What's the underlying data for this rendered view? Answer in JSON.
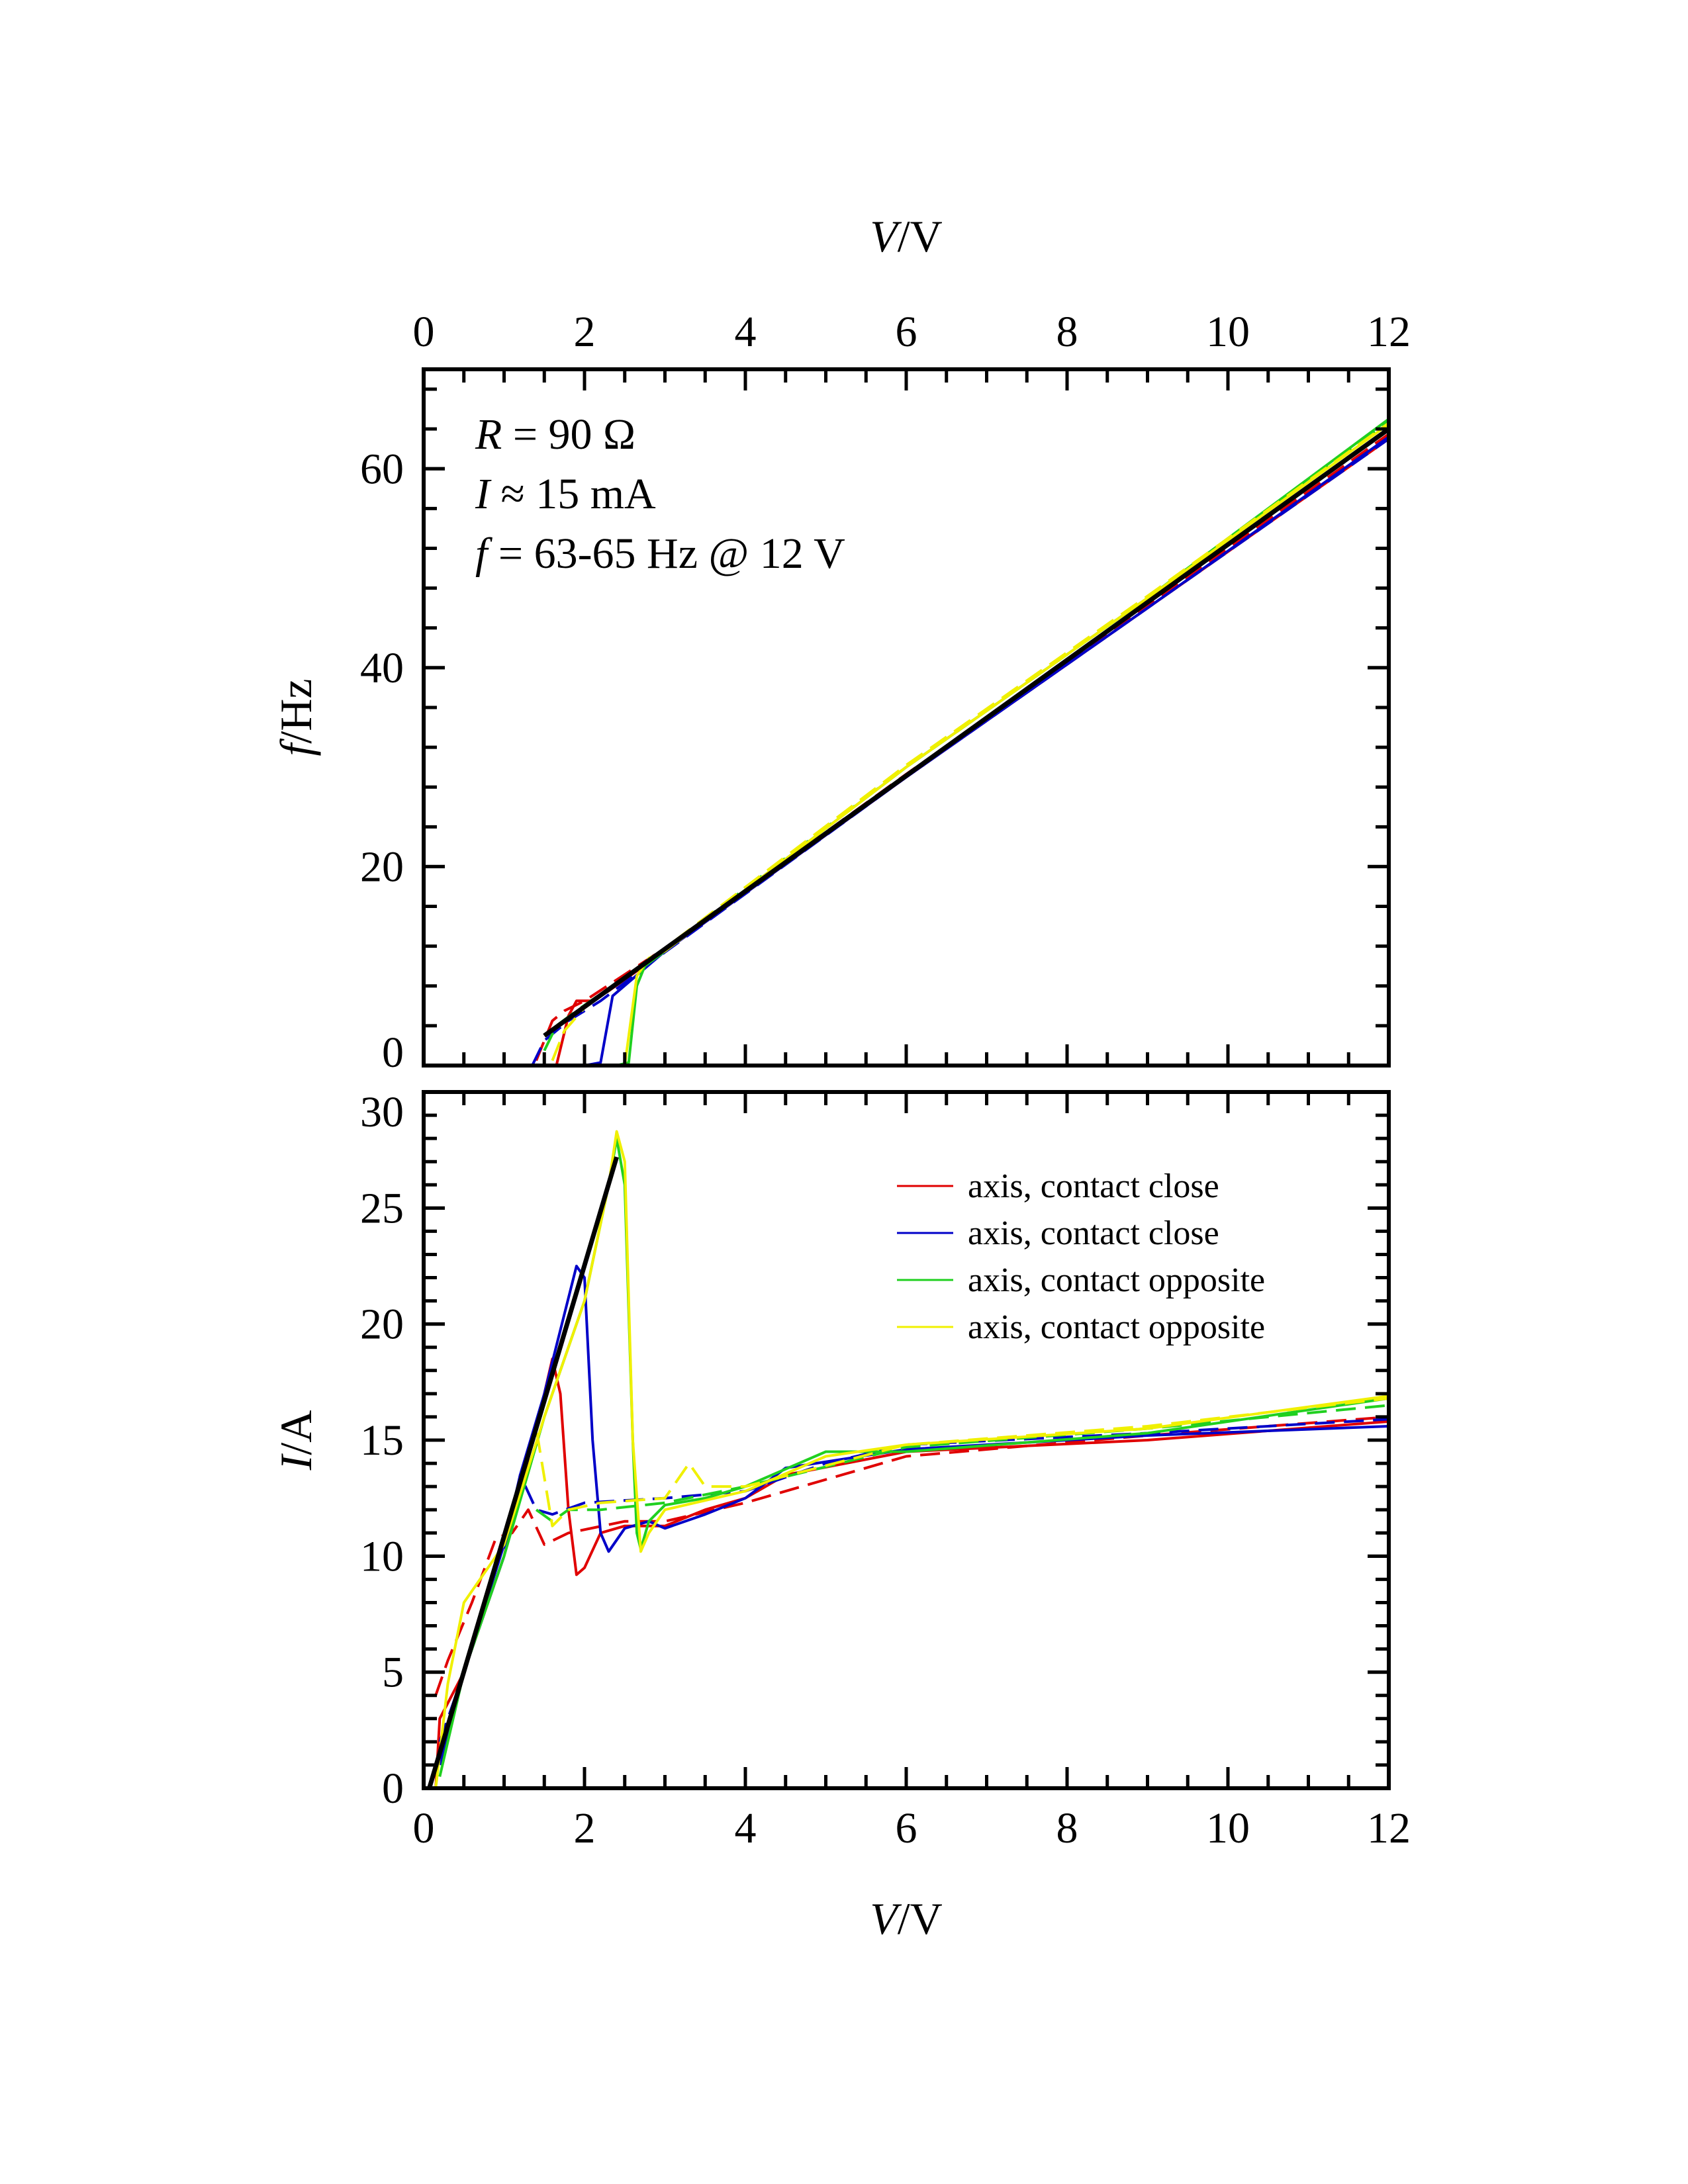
{
  "chart_data": [
    {
      "type": "line",
      "panel": "top",
      "xlabel_var": "V",
      "xlabel_unit": "/V",
      "ylabel_var": "f",
      "ylabel_unit": "/Hz",
      "xlim": [
        0,
        12
      ],
      "ylim": [
        0,
        70
      ],
      "xticks": [
        "0",
        "2",
        "4",
        "6",
        "8",
        "10",
        "12"
      ],
      "yticks": [
        "0",
        "20",
        "40",
        "60"
      ],
      "ytick_values": [
        0,
        20,
        40,
        60
      ],
      "annotations": [
        {
          "var": "R",
          "text": " = 90 Ω"
        },
        {
          "var": "I",
          "text": " ≈ 15 mA"
        },
        {
          "var": "f",
          "text": " = 63-65 Hz @ 12 V"
        }
      ],
      "fit_line": [
        [
          1.5,
          3.0
        ],
        [
          12,
          64
        ]
      ],
      "series": [
        {
          "name": "axis, contact close",
          "color": "#e00000",
          "style": "solid",
          "points": [
            [
              0,
              0
            ],
            [
              1.65,
              0
            ],
            [
              1.8,
              5
            ],
            [
              1.9,
              6.5
            ],
            [
              2.1,
              6.5
            ],
            [
              2.3,
              7.5
            ],
            [
              3,
              11.5
            ],
            [
              6,
              29
            ],
            [
              9,
              46
            ],
            [
              12,
              63
            ]
          ]
        },
        {
          "name": "axis, contact close",
          "color": "#e00000",
          "style": "dashed",
          "points": [
            [
              1.4,
              0.5
            ],
            [
              1.6,
              4.5
            ],
            [
              1.75,
              5.5
            ],
            [
              2,
              6.5
            ],
            [
              3,
              11.8
            ],
            [
              6,
              29.3
            ],
            [
              9,
              46.2
            ],
            [
              12,
              63.5
            ]
          ]
        },
        {
          "name": "axis, contact close",
          "color": "#0000c8",
          "style": "solid",
          "points": [
            [
              0,
              0
            ],
            [
              2.0,
              0
            ],
            [
              2.2,
              0.3
            ],
            [
              2.35,
              7
            ],
            [
              3,
              11.5
            ],
            [
              6,
              29
            ],
            [
              9,
              46
            ],
            [
              12,
              63.2
            ]
          ]
        },
        {
          "name": "axis, contact close",
          "color": "#0000c8",
          "style": "dashed",
          "points": [
            [
              1.35,
              0
            ],
            [
              1.5,
              2.5
            ],
            [
              1.8,
              4.5
            ],
            [
              2.2,
              6.5
            ],
            [
              3,
              11.4
            ],
            [
              6,
              29
            ],
            [
              9,
              46
            ],
            [
              12,
              63
            ]
          ]
        },
        {
          "name": "axis, contact opposite",
          "color": "#20d020",
          "style": "solid",
          "points": [
            [
              0,
              0
            ],
            [
              2.4,
              0
            ],
            [
              2.55,
              0.3
            ],
            [
              2.65,
              8
            ],
            [
              2.75,
              10
            ],
            [
              3,
              11.5
            ],
            [
              6,
              30
            ],
            [
              9,
              47
            ],
            [
              12,
              65
            ]
          ]
        },
        {
          "name": "axis, contact opposite",
          "color": "#20d020",
          "style": "dashed",
          "points": [
            [
              1.5,
              1.5
            ],
            [
              1.65,
              4
            ],
            [
              1.9,
              5.5
            ],
            [
              3,
              11.7
            ],
            [
              6,
              30
            ],
            [
              9,
              47
            ],
            [
              12,
              64.8
            ]
          ]
        },
        {
          "name": "axis, contact opposite",
          "color": "#f0f000",
          "style": "solid",
          "points": [
            [
              0,
              0
            ],
            [
              2.5,
              0
            ],
            [
              2.65,
              9
            ],
            [
              2.8,
              10.8
            ],
            [
              3,
              11.5
            ],
            [
              6,
              30
            ],
            [
              9,
              47
            ],
            [
              12,
              64.5
            ]
          ]
        },
        {
          "name": "axis, contact opposite",
          "color": "#f0f000",
          "style": "dashed",
          "points": [
            [
              1.6,
              0.5
            ],
            [
              1.75,
              3.5
            ],
            [
              2,
              5.8
            ],
            [
              3,
              11.8
            ],
            [
              6,
              30.2
            ],
            [
              9,
              47.2
            ],
            [
              12,
              64.6
            ]
          ]
        }
      ]
    },
    {
      "type": "line",
      "panel": "bottom",
      "xlabel_var": "V",
      "xlabel_unit": "/V",
      "ylabel_var": "I",
      "ylabel_unit": "/A",
      "xlim": [
        0,
        12
      ],
      "ylim": [
        0,
        30
      ],
      "xticks": [
        "0",
        "2",
        "4",
        "6",
        "8",
        "10",
        "12"
      ],
      "yticks": [
        "0",
        "5",
        "10",
        "15",
        "20",
        "25",
        "30"
      ],
      "ytick_values": [
        0,
        5,
        10,
        15,
        20,
        25,
        30
      ],
      "legend_position": "top-right",
      "legend": [
        {
          "label": "axis, contact close",
          "color": "#e00000"
        },
        {
          "label": "axis, contact close",
          "color": "#0000c8"
        },
        {
          "label": "axis, contact opposite",
          "color": "#20d020"
        },
        {
          "label": "axis, contact opposite",
          "color": "#f0f000"
        }
      ],
      "fit_line": [
        [
          0.07,
          0
        ],
        [
          2.4,
          27.2
        ]
      ],
      "series": [
        {
          "name": "axis, contact close",
          "color": "#e00000",
          "style": "solid",
          "points": [
            [
              0.15,
              0
            ],
            [
              0.2,
              3
            ],
            [
              0.5,
              5
            ],
            [
              1,
              10
            ],
            [
              1.5,
              17
            ],
            [
              1.6,
              18.5
            ],
            [
              1.7,
              17
            ],
            [
              1.8,
              12
            ],
            [
              1.9,
              9.2
            ],
            [
              2.0,
              9.5
            ],
            [
              2.2,
              11
            ],
            [
              2.5,
              11.3
            ],
            [
              3,
              11.3
            ],
            [
              3.5,
              12
            ],
            [
              4,
              12.5
            ],
            [
              4.5,
              13.5
            ],
            [
              6,
              14.5
            ],
            [
              9,
              15
            ],
            [
              12,
              15.8
            ]
          ]
        },
        {
          "name": "axis, contact close",
          "color": "#e00000",
          "style": "dashed",
          "points": [
            [
              0.15,
              4
            ],
            [
              0.3,
              5.5
            ],
            [
              0.6,
              8
            ],
            [
              0.9,
              10.8
            ],
            [
              1.1,
              11
            ],
            [
              1.3,
              12
            ],
            [
              1.5,
              10.5
            ],
            [
              1.8,
              11
            ],
            [
              2.5,
              11.5
            ],
            [
              3,
              11.5
            ],
            [
              4,
              12.3
            ],
            [
              6,
              14.3
            ],
            [
              9,
              15.2
            ],
            [
              12,
              16
            ]
          ]
        },
        {
          "name": "axis, contact close",
          "color": "#0000c8",
          "style": "solid",
          "points": [
            [
              0.2,
              1
            ],
            [
              0.5,
              5
            ],
            [
              1,
              10.5
            ],
            [
              1.2,
              13.5
            ],
            [
              1.5,
              17
            ],
            [
              1.9,
              22.5
            ],
            [
              2.0,
              22
            ],
            [
              2.1,
              15
            ],
            [
              2.2,
              11
            ],
            [
              2.3,
              10.2
            ],
            [
              2.5,
              11.2
            ],
            [
              2.8,
              11.5
            ],
            [
              3,
              11.2
            ],
            [
              3.5,
              11.8
            ],
            [
              4,
              12.5
            ],
            [
              4.5,
              13.8
            ],
            [
              6,
              14.6
            ],
            [
              9,
              15.2
            ],
            [
              12,
              15.6
            ]
          ]
        },
        {
          "name": "axis, contact close",
          "color": "#0000c8",
          "style": "dashed",
          "points": [
            [
              0.2,
              2
            ],
            [
              0.5,
              5
            ],
            [
              1,
              10
            ],
            [
              1.2,
              13.5
            ],
            [
              1.4,
              12
            ],
            [
              1.6,
              11.8
            ],
            [
              2,
              12.3
            ],
            [
              3,
              12.5
            ],
            [
              4,
              12.8
            ],
            [
              5,
              14
            ],
            [
              6,
              14.8
            ],
            [
              9,
              15.3
            ],
            [
              12,
              15.9
            ]
          ]
        },
        {
          "name": "axis, contact opposite",
          "color": "#20d020",
          "style": "solid",
          "points": [
            [
              0.2,
              0.5
            ],
            [
              0.5,
              5
            ],
            [
              1,
              10
            ],
            [
              1.5,
              16
            ],
            [
              2,
              21
            ],
            [
              2.3,
              26
            ],
            [
              2.4,
              28
            ],
            [
              2.5,
              26
            ],
            [
              2.6,
              15
            ],
            [
              2.65,
              11
            ],
            [
              2.7,
              10.3
            ],
            [
              2.8,
              11.5
            ],
            [
              3,
              12.2
            ],
            [
              3.5,
              12.5
            ],
            [
              4,
              13
            ],
            [
              5,
              14.5
            ],
            [
              6,
              14.5
            ],
            [
              9,
              15.3
            ],
            [
              12,
              16.8
            ]
          ]
        },
        {
          "name": "axis, contact opposite",
          "color": "#20d020",
          "style": "dashed",
          "points": [
            [
              1.4,
              12
            ],
            [
              1.6,
              11.5
            ],
            [
              1.8,
              12
            ],
            [
              2.2,
              12
            ],
            [
              3,
              12.3
            ],
            [
              4,
              13
            ],
            [
              6,
              14.7
            ],
            [
              9,
              15.5
            ],
            [
              12,
              16.5
            ]
          ]
        },
        {
          "name": "axis, contact opposite",
          "color": "#f0f000",
          "style": "solid",
          "points": [
            [
              0.15,
              0
            ],
            [
              0.3,
              4.5
            ],
            [
              0.5,
              8
            ],
            [
              1,
              10.5
            ],
            [
              1.5,
              16
            ],
            [
              2,
              21
            ],
            [
              2.3,
              26
            ],
            [
              2.4,
              28.3
            ],
            [
              2.5,
              27
            ],
            [
              2.6,
              15
            ],
            [
              2.7,
              10.2
            ],
            [
              2.8,
              11
            ],
            [
              3,
              12
            ],
            [
              4,
              12.8
            ],
            [
              5,
              14.3
            ],
            [
              6,
              14.8
            ],
            [
              9,
              15.5
            ],
            [
              12,
              16.9
            ]
          ]
        },
        {
          "name": "axis, contact opposite",
          "color": "#f0f000",
          "style": "dashed",
          "points": [
            [
              1.3,
              14.5
            ],
            [
              1.4,
              15.5
            ],
            [
              1.6,
              11.3
            ],
            [
              1.8,
              12
            ],
            [
              2.2,
              12.3
            ],
            [
              3,
              12.5
            ],
            [
              3.3,
              14
            ],
            [
              3.5,
              13
            ],
            [
              4,
              13
            ],
            [
              6,
              14.8
            ],
            [
              9,
              15.6
            ],
            [
              12,
              16.8
            ]
          ]
        }
      ]
    }
  ]
}
